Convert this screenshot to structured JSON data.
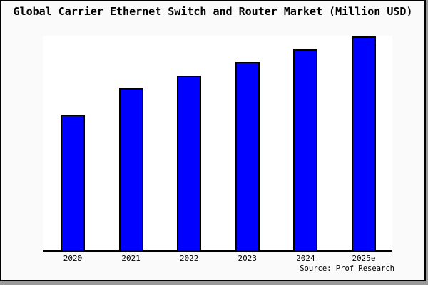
{
  "chart_data": {
    "type": "bar",
    "title": "Global Carrier Ethernet Switch and Router Market (Million USD)",
    "categories": [
      "2020",
      "2021",
      "2022",
      "2023",
      "2024",
      "2025e"
    ],
    "values": [
      63.2,
      75.6,
      81.7,
      87.9,
      93.9,
      100
    ],
    "values_note": "Relative index (max bar = 100); chart displays no y-axis scale or value labels",
    "xlabel": "",
    "ylabel": "",
    "ylim": [
      0,
      100
    ],
    "grid": false,
    "legend": null,
    "source": "Source: Prof Research",
    "colors": {
      "bar_fill": "#0000fe",
      "bar_edge": "#000000",
      "plot_background": "#ffffff",
      "figure_background": "#fafafa",
      "axis_line": "#000000",
      "text": "#000000"
    }
  }
}
